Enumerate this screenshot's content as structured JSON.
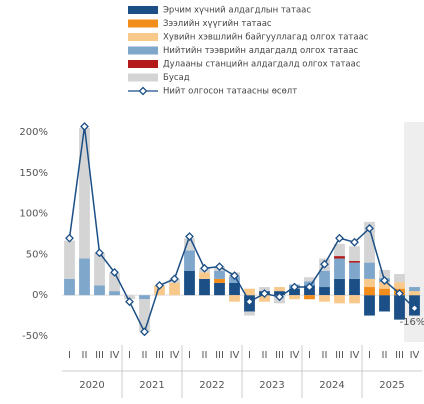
{
  "chart_data": {
    "type": "bar",
    "categories": [
      "I",
      "II",
      "III",
      "IV",
      "I",
      "II",
      "III",
      "IV",
      "I",
      "II",
      "III",
      "IV",
      "I",
      "II",
      "III",
      "IV",
      "I",
      "II",
      "III",
      "IV",
      "I",
      "II",
      "III",
      "IV"
    ],
    "years": [
      "2020",
      "2021",
      "2022",
      "2023",
      "2024",
      "2025"
    ],
    "series": [
      {
        "name": "Эрчим хүчний алдагдлын татаас",
        "color": "#1b4f86",
        "values": [
          0,
          0,
          0,
          0,
          0,
          0,
          0,
          0,
          30,
          20,
          15,
          15,
          -20,
          5,
          5,
          8,
          12,
          10,
          20,
          20,
          -25,
          -20,
          -30,
          -25
        ]
      },
      {
        "name": "Зээлийн хүүгийн татаас",
        "color": "#f28c1a",
        "values": [
          0,
          0,
          0,
          0,
          0,
          0,
          0,
          0,
          0,
          0,
          5,
          0,
          0,
          0,
          0,
          0,
          -5,
          0,
          0,
          0,
          10,
          8,
          8,
          0
        ]
      },
      {
        "name": "Хувийн хэвшлийн байгууллагад олгох татаас",
        "color": "#f9c98c",
        "values": [
          0,
          0,
          0,
          0,
          0,
          0,
          12,
          15,
          0,
          8,
          0,
          -8,
          8,
          -8,
          5,
          -5,
          0,
          -8,
          -10,
          -10,
          10,
          8,
          8,
          5
        ]
      },
      {
        "name": "Нийтийн тээврийн алдагдалд олгох татаас",
        "color": "#7fa6cb",
        "values": [
          20,
          45,
          12,
          5,
          0,
          -5,
          0,
          0,
          25,
          0,
          10,
          8,
          0,
          0,
          0,
          5,
          5,
          20,
          25,
          20,
          20,
          5,
          0,
          5
        ]
      },
      {
        "name": "Дулааны станцийн алдагдалд олгох татаас",
        "color": "#b31b1b",
        "values": [
          0,
          0,
          0,
          0,
          0,
          0,
          0,
          0,
          0,
          0,
          0,
          0,
          0,
          0,
          0,
          0,
          0,
          0,
          3,
          2,
          0,
          0,
          0,
          0
        ]
      },
      {
        "name": "Бусад",
        "color": "#d4d4d4",
        "values": [
          47,
          160,
          40,
          22,
          -5,
          -40,
          0,
          5,
          15,
          5,
          5,
          5,
          -5,
          5,
          -10,
          0,
          5,
          15,
          15,
          18,
          50,
          10,
          10,
          0
        ]
      }
    ],
    "line": {
      "name": "Нийт олгосон татаасны өсөлт",
      "color": "#1b4f86",
      "values": [
        70,
        207,
        52,
        28,
        -8,
        -45,
        12,
        20,
        72,
        33,
        35,
        24,
        -8,
        2,
        -2,
        10,
        10,
        38,
        70,
        65,
        82,
        18,
        2,
        -16
      ]
    },
    "annotation": "-16%",
    "ylim": [
      -55,
      215
    ],
    "yticks": [
      {
        "value": -50,
        "label": "-50%"
      },
      {
        "value": 0,
        "label": "0%"
      },
      {
        "value": 50,
        "label": "50%"
      },
      {
        "value": 100,
        "label": "100%"
      },
      {
        "value": 150,
        "label": "150%"
      },
      {
        "value": 200,
        "label": "200%"
      }
    ],
    "grid": false
  }
}
